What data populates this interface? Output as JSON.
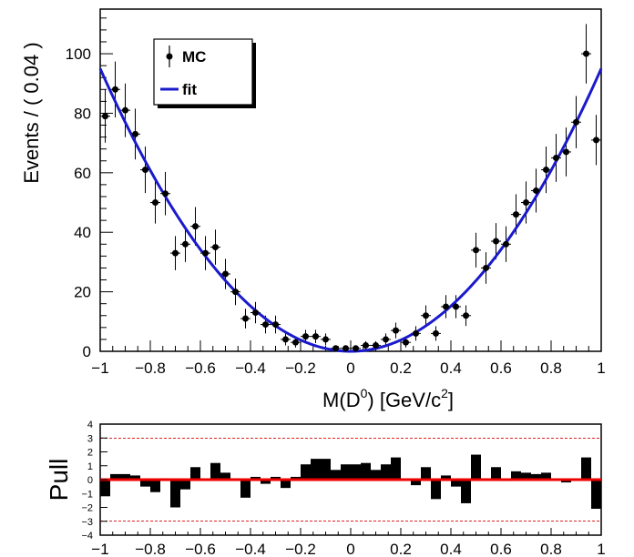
{
  "chart_data": [
    {
      "type": "scatter",
      "ylabel": "Events / ( 0.04 )",
      "xlabel_parts": [
        "M(D",
        "0",
        ") [GeV/c",
        "2",
        "]"
      ],
      "xlim": [
        -1,
        1
      ],
      "ylim": [
        0,
        115
      ],
      "x_ticks": [
        -1,
        -0.8,
        -0.6,
        -0.4,
        -0.2,
        0,
        0.2,
        0.4,
        0.6,
        0.8,
        1
      ],
      "x_tick_labels": [
        "−1",
        "−0.8",
        "−0.6",
        "−0.4",
        "−0.2",
        "0",
        "0.2",
        "0.4",
        "0.6",
        "0.8",
        "1"
      ],
      "y_ticks": [
        0,
        20,
        40,
        60,
        80,
        100
      ],
      "y_tick_labels": [
        "0",
        "20",
        "40",
        "60",
        "80",
        "100"
      ],
      "legend": {
        "position": "top-left",
        "entries": [
          {
            "label": "MC",
            "marker": "point"
          },
          {
            "label": "fit",
            "marker": "line"
          }
        ]
      },
      "series": [
        {
          "name": "MC",
          "x": [
            -0.98,
            -0.94,
            -0.9,
            -0.86,
            -0.82,
            -0.78,
            -0.74,
            -0.7,
            -0.66,
            -0.62,
            -0.58,
            -0.54,
            -0.5,
            -0.46,
            -0.42,
            -0.38,
            -0.34,
            -0.3,
            -0.26,
            -0.22,
            -0.18,
            -0.14,
            -0.1,
            -0.06,
            -0.02,
            0.02,
            0.06,
            0.1,
            0.14,
            0.18,
            0.22,
            0.26,
            0.3,
            0.34,
            0.38,
            0.42,
            0.46,
            0.5,
            0.54,
            0.58,
            0.62,
            0.66,
            0.7,
            0.74,
            0.78,
            0.82,
            0.86,
            0.9,
            0.94,
            0.98
          ],
          "y": [
            79,
            88,
            81,
            73,
            61,
            50,
            53,
            33,
            36,
            42,
            33,
            35,
            26,
            20,
            11,
            13,
            9,
            9,
            4,
            3,
            5,
            5,
            4,
            1,
            1,
            1,
            2,
            2,
            4,
            7,
            3,
            6,
            12,
            6,
            15,
            15,
            12,
            34,
            28,
            37,
            36,
            46,
            50,
            54,
            61,
            65,
            67,
            77,
            100,
            71
          ]
        },
        {
          "name": "fit",
          "function": "y = 95 * x^2",
          "color": "#1a1acc"
        }
      ]
    },
    {
      "type": "bar",
      "ylabel": "Pull",
      "xlim": [
        -1,
        1
      ],
      "ylim": [
        -4,
        4
      ],
      "x_ticks": [
        -1,
        -0.8,
        -0.6,
        -0.4,
        -0.2,
        0,
        0.2,
        0.4,
        0.6,
        0.8,
        1
      ],
      "x_tick_labels": [
        "−1",
        "−0.8",
        "−0.6",
        "−0.4",
        "−0.2",
        "0",
        "0.2",
        "0.4",
        "0.6",
        "0.8",
        "1"
      ],
      "y_ticks": [
        -4,
        -3,
        -2,
        -1,
        0,
        1,
        2,
        3,
        4
      ],
      "y_tick_labels": [
        "−4",
        "−3",
        "−2",
        "−1",
        "0",
        "1",
        "2",
        "3",
        "4"
      ],
      "reference_lines": [
        -3,
        0,
        3
      ],
      "x": [
        -0.98,
        -0.94,
        -0.9,
        -0.86,
        -0.82,
        -0.78,
        -0.74,
        -0.7,
        -0.66,
        -0.62,
        -0.58,
        -0.54,
        -0.5,
        -0.46,
        -0.42,
        -0.38,
        -0.34,
        -0.3,
        -0.26,
        -0.22,
        -0.18,
        -0.14,
        -0.1,
        -0.06,
        -0.02,
        0.02,
        0.06,
        0.1,
        0.14,
        0.18,
        0.22,
        0.26,
        0.3,
        0.34,
        0.38,
        0.42,
        0.46,
        0.5,
        0.54,
        0.58,
        0.62,
        0.66,
        0.7,
        0.74,
        0.78,
        0.82,
        0.86,
        0.9,
        0.94,
        0.98
      ],
      "values": [
        -1.2,
        0.4,
        0.4,
        0.3,
        -0.5,
        -0.9,
        0.1,
        -2.0,
        -0.7,
        0.9,
        0.0,
        1.2,
        0.5,
        0.1,
        -1.3,
        0.2,
        -0.3,
        0.2,
        -0.6,
        0.2,
        1.1,
        1.5,
        1.5,
        0.7,
        1.1,
        1.1,
        1.2,
        0.7,
        1.1,
        1.6,
        0.0,
        -0.4,
        0.9,
        -1.4,
        0.3,
        -0.5,
        -1.7,
        1.8,
        0.1,
        0.9,
        -0.1,
        0.6,
        0.5,
        0.4,
        0.5,
        0.0,
        -0.2,
        0.0,
        1.6,
        -2.1
      ]
    }
  ]
}
